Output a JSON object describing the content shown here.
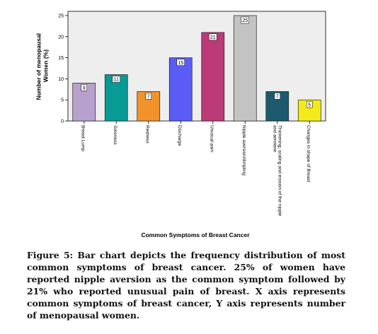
{
  "chart_data": {
    "type": "bar",
    "title": "",
    "xlabel": "Common Symptoms of Breast Cancer",
    "ylabel": "Number of menopausal Women (%)",
    "ylim": [
      0,
      25
    ],
    "yticks": [
      "0",
      "5",
      "10",
      "15",
      "20",
      "25"
    ],
    "grid": false,
    "categories": [
      "Breast Lump",
      "Soreness",
      "Redness",
      "Discharge",
      "Unusual pain",
      "Nipple aversion/dimpling",
      "Thickening, scaling and erosion of the nipple and aerolane",
      "Changes in shape of Breast"
    ],
    "values": [
      9,
      11,
      7,
      15,
      21,
      25,
      7,
      5
    ],
    "data_labels": [
      "9",
      "11",
      "7",
      "15",
      "21",
      "25",
      "7",
      "5"
    ],
    "colors": [
      "#b7a0ce",
      "#089a94",
      "#f2922b",
      "#5a5cf5",
      "#bb3a78",
      "#c3c3c3",
      "#1d5a70",
      "#f4ea1a"
    ]
  },
  "caption": "Figure 5: Bar chart depicts the frequency distribution of most common symptoms of breast cancer. 25% of women have reported nipple aversion as the common symptom followed by 21% who reported unusual pain of breast. X axis represents common symptoms of breast cancer, Y axis represents number of menopausal women."
}
